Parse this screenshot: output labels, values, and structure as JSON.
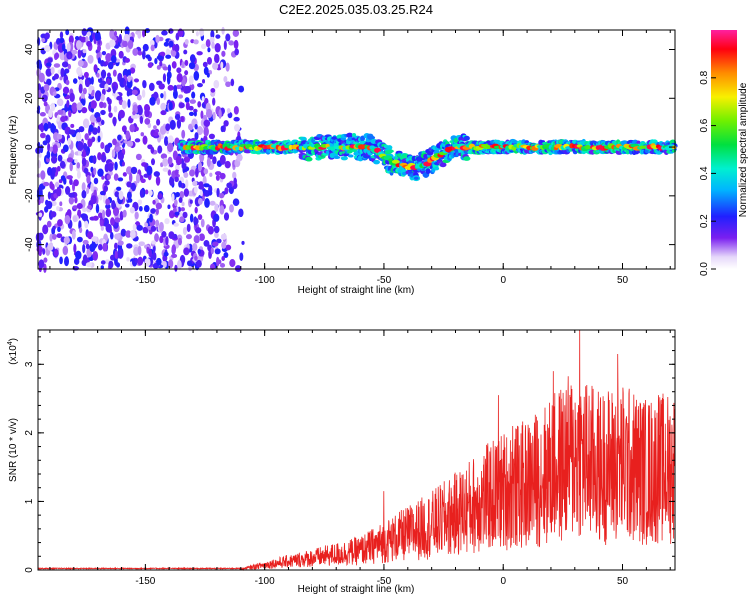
{
  "title": "C2E2.2025.035.03.25.R24",
  "chart_data": [
    {
      "type": "heatmap",
      "xlabel": "Height of straight line (km)",
      "ylabel": "Frequency (Hz)",
      "xlim": [
        -195,
        72
      ],
      "ylim": [
        -50,
        48
      ],
      "xticks": [
        -150,
        -100,
        -50,
        0,
        50
      ],
      "yticks": [
        -40,
        -20,
        0,
        20,
        40
      ],
      "colorbar": {
        "label": "Normalized spectral amplitude",
        "range": [
          0,
          1
        ],
        "ticks": [
          "0.0",
          "0.2",
          "0.4",
          "0.6",
          "0.8"
        ]
      },
      "features": [
        {
          "kind": "broadband_noise",
          "x_range": [
            -195,
            -108
          ],
          "freq_range": [
            -50,
            48
          ],
          "amplitude": 0.12
        },
        {
          "kind": "tonal_line",
          "x_range": [
            -135,
            72
          ],
          "centre_freq": 0,
          "amplitude": 0.85
        },
        {
          "kind": "dip",
          "x_range": [
            -55,
            -22
          ],
          "min_freq": -8,
          "at_x": -40
        }
      ]
    },
    {
      "type": "line",
      "xlabel": "Height of straight line (km)",
      "ylabel": "SNR (10 * v/v)",
      "multiplier": "(x10",
      "multiplier_exp": "4",
      "xlim": [
        -195,
        72
      ],
      "ylim": [
        0,
        3.5
      ],
      "xticks": [
        -150,
        -100,
        -50,
        0,
        50
      ],
      "yticks": [
        0,
        1,
        2,
        3
      ],
      "series_color": "#e8201e",
      "envelope": {
        "x": [
          -195,
          -110,
          -100,
          -80,
          -60,
          -50,
          -40,
          -30,
          -20,
          -10,
          0,
          10,
          20,
          30,
          40,
          50,
          60,
          72
        ],
        "y": [
          0.02,
          0.02,
          0.12,
          0.28,
          0.45,
          0.65,
          0.85,
          1.05,
          1.3,
          1.6,
          1.85,
          2.0,
          2.3,
          2.7,
          2.4,
          2.5,
          2.3,
          2.4
        ]
      },
      "peaks": [
        {
          "x": 32,
          "y": 3.5
        },
        {
          "x": 48,
          "y": 3.15
        },
        {
          "x": 21,
          "y": 2.9
        },
        {
          "x": -2,
          "y": 2.55
        },
        {
          "x": 4,
          "y": 2.1
        },
        {
          "x": 65,
          "y": 2.55
        },
        {
          "x": -50,
          "y": 1.15
        }
      ]
    }
  ]
}
